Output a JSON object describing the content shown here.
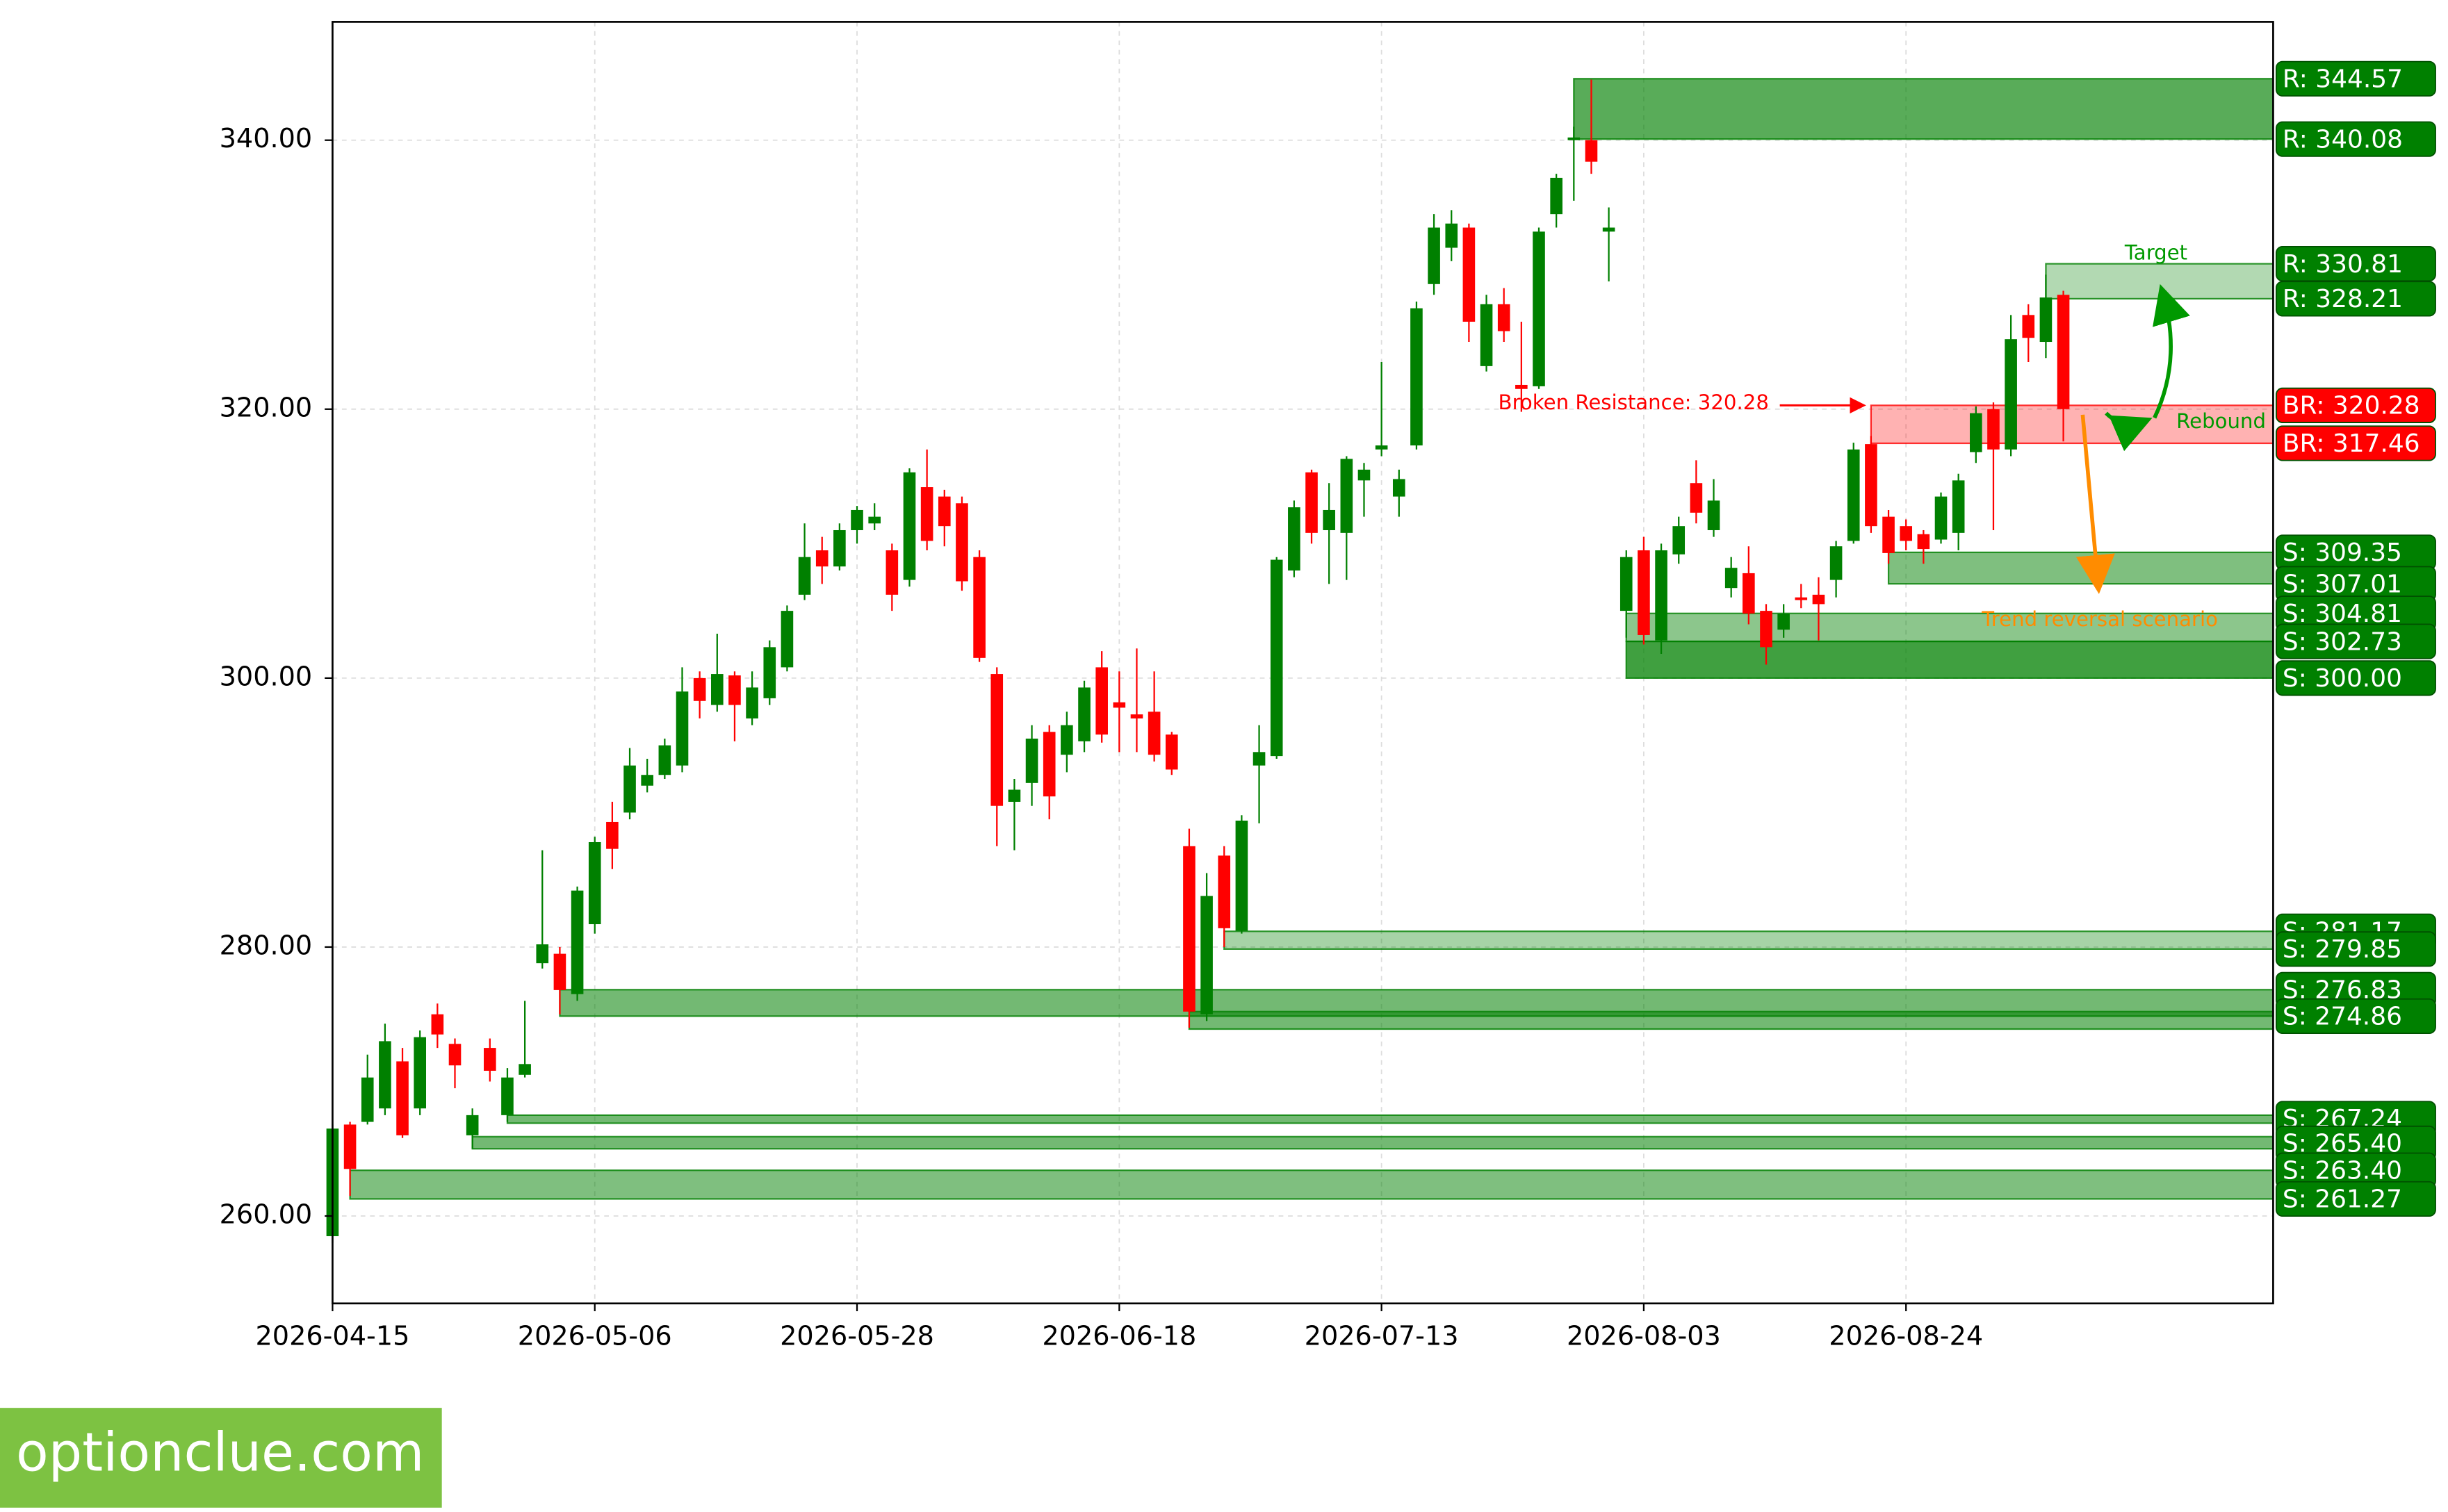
{
  "chart_data": {
    "type": "candlestick",
    "categories": [
      "2026-04-15",
      null,
      null,
      null,
      null,
      null,
      null,
      null,
      null,
      null,
      null,
      null,
      null,
      null,
      null,
      "2026-05-06",
      null,
      null,
      null,
      null,
      null,
      null,
      null,
      null,
      null,
      null,
      null,
      null,
      null,
      null,
      "2026-05-28",
      null,
      null,
      null,
      null,
      null,
      null,
      null,
      null,
      null,
      null,
      null,
      null,
      null,
      null,
      "2026-06-18",
      null,
      null,
      null,
      null,
      null,
      null,
      null,
      null,
      null,
      null,
      null,
      null,
      null,
      null,
      "2026-07-13",
      null,
      null,
      null,
      null,
      null,
      null,
      null,
      null,
      null,
      null,
      null,
      null,
      null,
      null,
      "2026-08-03",
      null,
      null,
      null,
      null,
      null,
      null,
      null,
      null,
      null,
      null,
      null,
      null,
      null,
      null,
      "2026-08-24",
      null,
      null,
      null,
      null,
      null,
      null,
      null,
      null,
      null
    ],
    "open": [
      258.5,
      266.8,
      267,
      268,
      271.5,
      268,
      275,
      272.8,
      266,
      272.5,
      267.5,
      270.5,
      278.8,
      279.5,
      276.5,
      281.7,
      289.3,
      290,
      292,
      292.8,
      293.5,
      300,
      298,
      300.2,
      297,
      298.5,
      300.8,
      306.2,
      309.5,
      308.3,
      311,
      311.5,
      309.5,
      307.3,
      314.2,
      313.5,
      313,
      309,
      300.3,
      290.8,
      292.2,
      296,
      294.3,
      295.3,
      300.8,
      298.2,
      297.3,
      297.5,
      295.8,
      287.5,
      275,
      286.8,
      281.2,
      293.5,
      294.2,
      308,
      315.3,
      311,
      310.8,
      314.7,
      317,
      313.5,
      317.3,
      329.3,
      332,
      333.5,
      323.2,
      327.8,
      321.8,
      321.7,
      334.5,
      340,
      340,
      333.2,
      305,
      309.5,
      302.8,
      309.2,
      314.5,
      311,
      306.7,
      307.8,
      305,
      303.6,
      306,
      306.2,
      307.3,
      310.2,
      317.4,
      312,
      311.3,
      310.7,
      310.3,
      310.8,
      316.8,
      320,
      317,
      327,
      325,
      328.5
    ],
    "high": [
      266.8,
      267,
      272,
      274.3,
      272.5,
      273.8,
      275.8,
      273.2,
      268,
      273.2,
      271,
      276,
      287.2,
      280,
      284.5,
      288.2,
      290.8,
      294.8,
      294,
      295.5,
      300.8,
      300.5,
      303.3,
      300.5,
      300.5,
      302.8,
      305.4,
      311.5,
      310.5,
      311.5,
      312.8,
      313,
      310,
      315.6,
      317,
      314,
      313.5,
      309.5,
      300.8,
      292.5,
      296.5,
      296.5,
      297.5,
      299.8,
      302,
      300.5,
      302.2,
      300.5,
      296,
      288.8,
      285.5,
      287.5,
      289.8,
      296.5,
      309,
      313.2,
      315.5,
      314.5,
      316.5,
      316,
      323.5,
      315.5,
      328,
      334.5,
      334.8,
      333.8,
      328.5,
      329,
      326.5,
      333.5,
      337.5,
      341,
      344.5,
      335,
      309.5,
      310.5,
      310,
      312,
      316.2,
      314.8,
      309,
      309.8,
      305.5,
      305.5,
      307,
      307.5,
      310.2,
      317.5,
      318,
      312.5,
      311.8,
      311,
      313.8,
      315.2,
      320.2,
      320.5,
      327,
      327.8,
      330,
      328.8
    ],
    "low": [
      258,
      261.5,
      266.8,
      267.5,
      265.8,
      267.5,
      272.5,
      269.5,
      265,
      270,
      267,
      270.3,
      278.4,
      275,
      276,
      281,
      285.8,
      289.5,
      291.5,
      292.5,
      293,
      297,
      297.5,
      295.3,
      296.5,
      298,
      300.5,
      305.8,
      307,
      308,
      310,
      311,
      305,
      306.8,
      309.5,
      309.8,
      306.5,
      301.2,
      287.5,
      287.2,
      290.5,
      289.5,
      293,
      294.5,
      295.2,
      294.5,
      294.5,
      293.8,
      292.8,
      274,
      274.5,
      280,
      281,
      289.2,
      294,
      307.5,
      310,
      307,
      307.3,
      312,
      316.5,
      312,
      317,
      328.5,
      331,
      325,
      322.8,
      325,
      319.8,
      321.5,
      333.5,
      335.5,
      337.5,
      329.5,
      303,
      302.5,
      301.8,
      308.5,
      311.5,
      310.5,
      306,
      304,
      301,
      303,
      305.2,
      302.8,
      306,
      310,
      310.8,
      308.5,
      309.5,
      308.5,
      310,
      309.5,
      316,
      311,
      316.5,
      323.5,
      323.8,
      317.6
    ],
    "close": [
      266.5,
      263.5,
      270.3,
      273,
      266,
      273.3,
      273.5,
      271.2,
      267.5,
      270.8,
      270.3,
      271.3,
      280.2,
      276.8,
      284.2,
      287.8,
      287.3,
      293.5,
      292.8,
      295,
      299,
      298.3,
      300.3,
      298,
      299.3,
      302.3,
      305,
      309,
      308.3,
      311,
      312.5,
      312,
      306.2,
      315.3,
      310.2,
      311.3,
      307.2,
      301.5,
      290.5,
      291.7,
      295.5,
      291.2,
      296.5,
      299.3,
      295.8,
      297.8,
      297,
      294.3,
      293.2,
      275.2,
      283.8,
      281.4,
      289.4,
      294.5,
      308.8,
      312.7,
      310.8,
      312.5,
      316.3,
      315.5,
      317.3,
      314.8,
      327.5,
      333.5,
      333.8,
      326.5,
      327.8,
      325.8,
      321.5,
      333.2,
      337.2,
      340.2,
      338.4,
      333.5,
      309,
      303.2,
      309.5,
      311.3,
      312.3,
      313.2,
      308.2,
      304.8,
      302.3,
      304.8,
      305.8,
      305.5,
      309.8,
      317,
      311.3,
      309.3,
      310.2,
      309.6,
      313.5,
      314.7,
      319.7,
      317,
      325.2,
      325.3,
      328.3,
      320
    ],
    "up_color": "#008000",
    "down_color": "#ff0000",
    "xlim": [
      0,
      111
    ],
    "ylim": [
      253.5,
      348.8
    ],
    "yticks": [
      {
        "value": 260,
        "label": "260.00"
      },
      {
        "value": 280,
        "label": "280.00"
      },
      {
        "value": 300,
        "label": "300.00"
      },
      {
        "value": 320,
        "label": "320.00"
      },
      {
        "value": 340,
        "label": "340.00"
      }
    ],
    "grid": true,
    "zones": [
      {
        "low": 340.08,
        "high": 344.57,
        "start": 71,
        "color": "#008000",
        "opacity": 0.65
      },
      {
        "low": 328.21,
        "high": 330.81,
        "start": 98,
        "color": "#008000",
        "opacity": 0.3
      },
      {
        "low": 317.46,
        "high": 320.28,
        "start": 88,
        "color": "#ff0000",
        "opacity": 0.3
      },
      {
        "low": 307.01,
        "high": 309.35,
        "start": 89,
        "color": "#008000",
        "opacity": 0.5
      },
      {
        "low": 302.73,
        "high": 304.81,
        "start": 74,
        "color": "#008000",
        "opacity": 0.45
      },
      {
        "low": 300.0,
        "high": 302.73,
        "start": 74,
        "color": "#008000",
        "opacity": 0.75
      },
      {
        "low": 279.85,
        "high": 281.17,
        "start": 51,
        "color": "#008000",
        "opacity": 0.35
      },
      {
        "low": 274.86,
        "high": 276.83,
        "start": 13,
        "color": "#008000",
        "opacity": 0.55
      },
      {
        "low": 273.9,
        "high": 275.2,
        "start": 49,
        "color": "#008000",
        "opacity": 0.55
      },
      {
        "low": 266.9,
        "high": 267.5,
        "start": 10,
        "color": "#008000",
        "opacity": 0.55
      },
      {
        "low": 265.0,
        "high": 265.9,
        "start": 8,
        "color": "#008000",
        "opacity": 0.55
      },
      {
        "low": 261.27,
        "high": 263.4,
        "start": 1,
        "color": "#008000",
        "opacity": 0.5
      }
    ],
    "levels": [
      {
        "value": 344.57,
        "label": "R: 344.57",
        "color": "#008000"
      },
      {
        "value": 340.08,
        "label": "R: 340.08",
        "color": "#008000"
      },
      {
        "value": 330.81,
        "label": "R: 330.81",
        "color": "#008000"
      },
      {
        "value": 328.21,
        "label": "R: 328.21",
        "color": "#008000"
      },
      {
        "value": 320.28,
        "label": "BR: 320.28",
        "color": "#ff0000"
      },
      {
        "value": 317.46,
        "label": "BR: 317.46",
        "color": "#ff0000"
      },
      {
        "value": 309.35,
        "label": "S: 309.35",
        "color": "#008000"
      },
      {
        "value": 307.01,
        "label": "S: 307.01",
        "color": "#008000"
      },
      {
        "value": 304.81,
        "label": "S: 304.81",
        "color": "#008000"
      },
      {
        "value": 302.73,
        "label": "S: 302.73",
        "color": "#008000"
      },
      {
        "value": 300.0,
        "label": "S: 300.00",
        "color": "#008000"
      },
      {
        "value": 281.17,
        "label": "S: 281.17",
        "color": "#008000"
      },
      {
        "value": 279.85,
        "label": "S: 279.85",
        "color": "#008000"
      },
      {
        "value": 276.83,
        "label": "S: 276.83",
        "color": "#008000"
      },
      {
        "value": 274.86,
        "label": "S: 274.86",
        "color": "#008000"
      },
      {
        "value": 267.24,
        "label": "S: 267.24",
        "color": "#008000"
      },
      {
        "value": 265.4,
        "label": "S: 265.40",
        "color": "#008000"
      },
      {
        "value": 263.4,
        "label": "S: 263.40",
        "color": "#008000"
      },
      {
        "value": 261.27,
        "label": "S: 261.27",
        "color": "#008000"
      }
    ],
    "annotations": [
      {
        "text": "Broken Resistance: 320.28",
        "color": "#ff0000"
      },
      {
        "text": "Target",
        "color": "#009900"
      },
      {
        "text": "Rebound",
        "color": "#009900"
      },
      {
        "text": "Trend reversal scenario",
        "color": "#ff8c00"
      }
    ]
  },
  "watermark": "optionclue.com"
}
